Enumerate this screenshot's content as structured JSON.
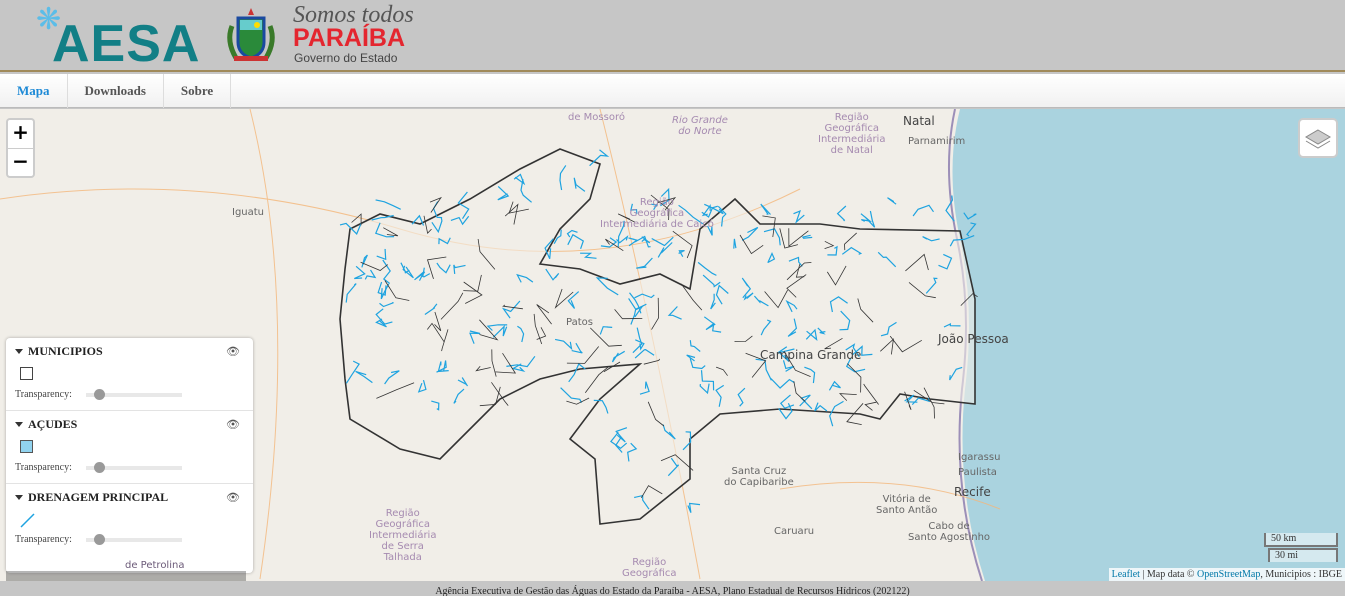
{
  "header": {
    "logo_text": "AESA",
    "gov_slogan": "Somos todos",
    "gov_state": "PARAÍBA",
    "gov_subtitle": "Governo do Estado"
  },
  "nav": {
    "tabs": [
      {
        "label": "Mapa",
        "active": true
      },
      {
        "label": "Downloads"
      },
      {
        "label": "Sobre"
      }
    ]
  },
  "map": {
    "zoom_in": "+",
    "zoom_out": "−",
    "labels": {
      "mossoro": "de Mossoró",
      "rgn": "Rio Grande\ndo Norte",
      "natal": "Natal",
      "parnamirim": "Parnamirim",
      "rgi_natal": "Região\nGeográfica\nIntermediária\nde Natal",
      "iguatu": "Iguatu",
      "caico": "Região\nGeográfica\nIntermediária de Caicó",
      "patos": "Patos",
      "campina": "Campina Grande",
      "joao": "João Pessoa",
      "santacruz": "Santa Cruz\ndo Capibaribe",
      "igarassu": "Igarassu",
      "paulista": "Paulista",
      "recife": "Recife",
      "vitoria": "Vitória de\nSanto Antão",
      "cabo": "Cabo de\nSanto Agostinho",
      "caruaru": "Caruaru",
      "serra": "Região\nGeográfica\nIntermediária\nde Serra\nTalhada",
      "regiao_bottom": "Região\nGeográfica",
      "petrolina": "de Petrolina"
    },
    "scale": {
      "km": "50 km",
      "mi": "30 mi"
    },
    "attribution": {
      "leaflet": "Leaflet",
      "sep": " | Map data © ",
      "osm": "OpenStreetMap",
      "rest": ", Municipios : IBGE"
    },
    "colors": {
      "ocean": "#aad3df",
      "land": "#f1eee8",
      "river": "#1ea3e0",
      "border": "#333333"
    }
  },
  "legend": {
    "transparency_label": "Transparency:",
    "layers": [
      {
        "title": "MUNICIPIOS",
        "symbol": "empty-square",
        "transparency": 0.05
      },
      {
        "title": "AÇUDES",
        "symbol": "blue-square",
        "color": "#91d3ef",
        "transparency": 0.05
      },
      {
        "title": "DRENAGEM PRINCIPAL",
        "symbol": "blue-line",
        "color": "#1ea3e0",
        "transparency": 0.05
      }
    ]
  },
  "footer": {
    "text": "Agência Executiva de Gestão das Águas do Estado da Paraíba - AESA, Plano Estadual de Recursos Hídricos (202122)"
  }
}
